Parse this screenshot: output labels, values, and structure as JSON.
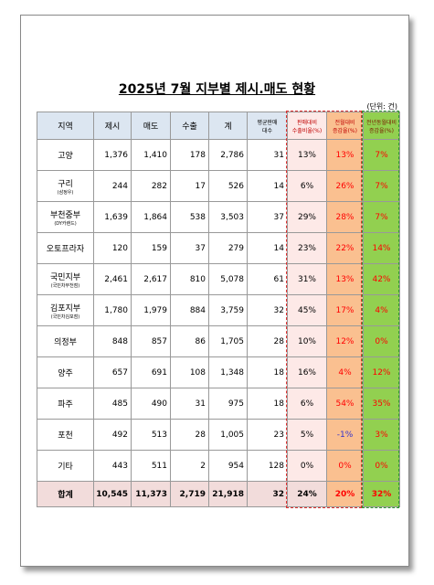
{
  "title": "2025년 7월 지부별 제시.매도 현황",
  "unit": "(단위: 건)",
  "table": {
    "headers": [
      [
        "지역"
      ],
      [
        "제시"
      ],
      [
        "매도"
      ],
      [
        "수출"
      ],
      [
        "계"
      ],
      [
        "평균판매",
        "대수"
      ],
      [
        "판매대비",
        "수출비율(%)"
      ],
      [
        "전월대비",
        "증감율(%)"
      ],
      [
        "전년동월대비",
        "증감율(%)"
      ]
    ],
    "rows": [
      {
        "region": "고양",
        "cells": [
          "1,376",
          "1,410",
          "178",
          "2,786",
          "31",
          "13%",
          "13%",
          "7%"
        ]
      },
      {
        "region": "구리",
        "note": "(삼정우)",
        "cells": [
          "244",
          "282",
          "17",
          "526",
          "14",
          "6%",
          "26%",
          "7%"
        ]
      },
      {
        "region": "부천중부",
        "note": "(DY카랜드)",
        "cells": [
          "1,639",
          "1,864",
          "538",
          "3,503",
          "37",
          "29%",
          "28%",
          "7%"
        ]
      },
      {
        "region": "오토프라자",
        "cells": [
          "120",
          "159",
          "37",
          "279",
          "14",
          "23%",
          "22%",
          "14%"
        ]
      },
      {
        "region": "국민지부",
        "note": "(국민차부천점)",
        "cells": [
          "2,461",
          "2,617",
          "810",
          "5,078",
          "61",
          "31%",
          "13%",
          "42%"
        ]
      },
      {
        "region": "김포지부",
        "note": "(국민차김포점)",
        "cells": [
          "1,780",
          "1,979",
          "884",
          "3,759",
          "32",
          "45%",
          "17%",
          "4%"
        ]
      },
      {
        "region": "의정부",
        "cells": [
          "848",
          "857",
          "86",
          "1,705",
          "28",
          "10%",
          "12%",
          "0%"
        ]
      },
      {
        "region": "양주",
        "cells": [
          "657",
          "691",
          "108",
          "1,348",
          "18",
          "16%",
          "4%",
          "12%"
        ]
      },
      {
        "region": "파주",
        "cells": [
          "485",
          "490",
          "31",
          "975",
          "18",
          "6%",
          "54%",
          "35%"
        ]
      },
      {
        "region": "포천",
        "cells": [
          "492",
          "513",
          "28",
          "1,005",
          "23",
          "5%",
          "-1%",
          "3%"
        ]
      },
      {
        "region": "기타",
        "cells": [
          "443",
          "511",
          "2",
          "954",
          "128",
          "0%",
          "0%",
          "0%"
        ]
      }
    ],
    "total": {
      "region": "합계",
      "cells": [
        "10,545",
        "11,373",
        "2,719",
        "21,918",
        "32",
        "24%",
        "20%",
        "32%"
      ]
    }
  }
}
